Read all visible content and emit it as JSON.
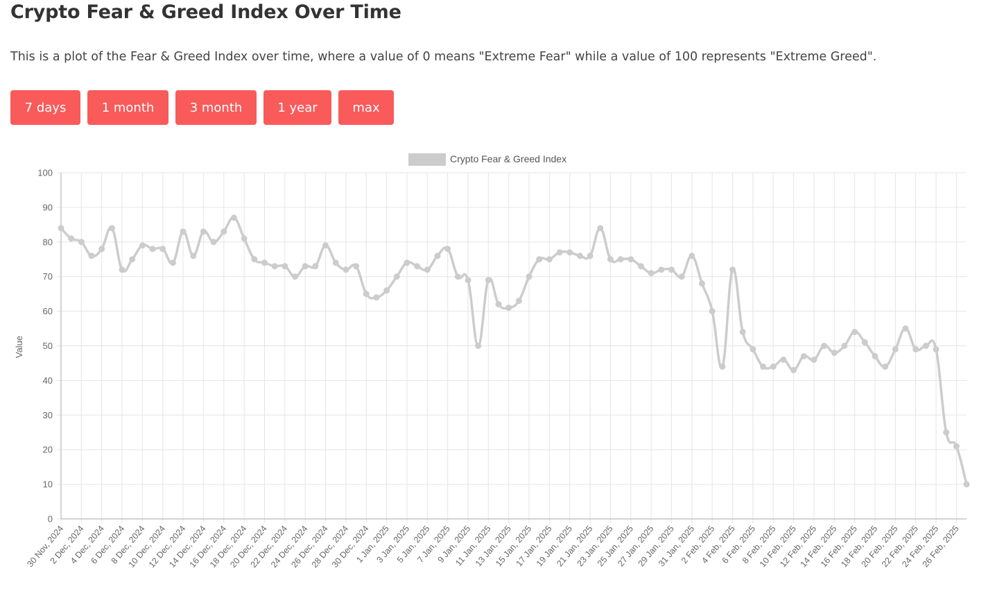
{
  "page": {
    "title": "Crypto Fear & Greed Index Over Time",
    "description": "This is a plot of the Fear & Greed Index over time, where a value of 0 means \"Extreme Fear\" while a value of 100 represents \"Extreme Greed\"."
  },
  "range_buttons": [
    {
      "id": "7-days",
      "label": "7 days"
    },
    {
      "id": "1-month",
      "label": "1 month"
    },
    {
      "id": "3-month",
      "label": "3 month"
    },
    {
      "id": "1-year",
      "label": "1 year"
    },
    {
      "id": "max",
      "label": "max"
    }
  ],
  "colors": {
    "button_bg": "#f95a5a",
    "series_line": "#cccccc",
    "grid": "#e5e5e5",
    "axis_text": "#666666"
  },
  "chart_data": {
    "type": "line",
    "title": "",
    "xlabel": "",
    "ylabel": "Value",
    "ylim": [
      0,
      100
    ],
    "y_ticks": [
      0,
      10,
      20,
      30,
      40,
      50,
      60,
      70,
      80,
      90,
      100
    ],
    "grid": true,
    "legend_position": "top-center",
    "x": [
      "30 Nov, 2024",
      "1 Dec, 2024",
      "2 Dec, 2024",
      "3 Dec, 2024",
      "4 Dec, 2024",
      "5 Dec, 2024",
      "6 Dec, 2024",
      "7 Dec, 2024",
      "8 Dec, 2024",
      "9 Dec, 2024",
      "10 Dec, 2024",
      "11 Dec, 2024",
      "12 Dec, 2024",
      "13 Dec, 2024",
      "14 Dec, 2024",
      "15 Dec, 2024",
      "16 Dec, 2024",
      "17 Dec, 2024",
      "18 Dec, 2024",
      "19 Dec, 2024",
      "20 Dec, 2024",
      "21 Dec, 2024",
      "22 Dec, 2024",
      "23 Dec, 2024",
      "24 Dec, 2024",
      "25 Dec, 2024",
      "26 Dec, 2024",
      "27 Dec, 2024",
      "28 Dec, 2024",
      "29 Dec, 2024",
      "30 Dec, 2024",
      "31 Dec, 2024",
      "1 Jan, 2025",
      "2 Jan, 2025",
      "3 Jan, 2025",
      "4 Jan, 2025",
      "5 Jan, 2025",
      "6 Jan, 2025",
      "7 Jan, 2025",
      "8 Jan, 2025",
      "9 Jan, 2025",
      "10 Jan, 2025",
      "11 Jan, 2025",
      "12 Jan, 2025",
      "13 Jan, 2025",
      "14 Jan, 2025",
      "15 Jan, 2025",
      "16 Jan, 2025",
      "17 Jan, 2025",
      "18 Jan, 2025",
      "19 Jan, 2025",
      "20 Jan, 2025",
      "21 Jan, 2025",
      "22 Jan, 2025",
      "23 Jan, 2025",
      "24 Jan, 2025",
      "25 Jan, 2025",
      "26 Jan, 2025",
      "27 Jan, 2025",
      "28 Jan, 2025",
      "29 Jan, 2025",
      "30 Jan, 2025",
      "31 Jan, 2025",
      "1 Feb, 2025",
      "2 Feb, 2025",
      "3 Feb, 2025",
      "4 Feb, 2025",
      "5 Feb, 2025",
      "6 Feb, 2025",
      "7 Feb, 2025",
      "8 Feb, 2025",
      "9 Feb, 2025",
      "10 Feb, 2025",
      "11 Feb, 2025",
      "12 Feb, 2025",
      "13 Feb, 2025",
      "14 Feb, 2025",
      "15 Feb, 2025",
      "16 Feb, 2025",
      "17 Feb, 2025",
      "18 Feb, 2025",
      "19 Feb, 2025",
      "20 Feb, 2025",
      "21 Feb, 2025",
      "22 Feb, 2025",
      "23 Feb, 2025",
      "24 Feb, 2025",
      "25 Feb, 2025",
      "26 Feb, 2025",
      "27 Feb, 2025"
    ],
    "series": [
      {
        "name": "Crypto Fear & Greed Index",
        "values": [
          84,
          81,
          80,
          76,
          78,
          84,
          72,
          75,
          79,
          78,
          78,
          74,
          83,
          76,
          83,
          80,
          83,
          87,
          81,
          75,
          74,
          73,
          73,
          70,
          73,
          73,
          79,
          74,
          72,
          73,
          65,
          64,
          66,
          70,
          74,
          73,
          72,
          76,
          78,
          70,
          69,
          50,
          69,
          62,
          61,
          63,
          70,
          75,
          75,
          77,
          77,
          76,
          76,
          84,
          75,
          75,
          75,
          73,
          71,
          72,
          72,
          70,
          76,
          68,
          60,
          44,
          72,
          54,
          49,
          44,
          44,
          46,
          43,
          47,
          46,
          50,
          48,
          50,
          54,
          51,
          47,
          44,
          49,
          55,
          49,
          50,
          49,
          25,
          21,
          10
        ]
      }
    ]
  }
}
